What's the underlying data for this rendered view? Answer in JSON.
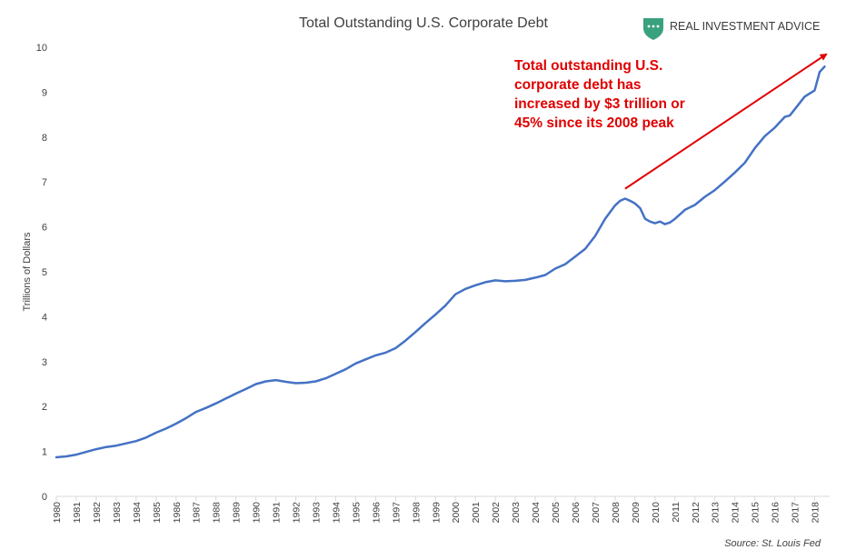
{
  "brand": {
    "name": "REAL INVESTMENT ADVICE",
    "logo_icon": "shield-logo-icon",
    "logo_color": "#3aa17e"
  },
  "source": "Source: St. Louis Fed",
  "colors": {
    "line": "#4472c4",
    "annotation": "#e00000",
    "axis": "#d9d9d9",
    "text": "#404040"
  },
  "chart_data": {
    "type": "line",
    "title": "Total Outstanding U.S. Corporate Debt",
    "xlabel": "",
    "ylabel": "Trillions of Dollars",
    "ylim": [
      0,
      10
    ],
    "xlim": [
      1980,
      2018.75
    ],
    "yticks": [
      0,
      1,
      2,
      3,
      4,
      5,
      6,
      7,
      8,
      9,
      10
    ],
    "xticks": [
      "1980",
      "1981",
      "1982",
      "1983",
      "1984",
      "1985",
      "1986",
      "1987",
      "1988",
      "1989",
      "1990",
      "1991",
      "1992",
      "1993",
      "1994",
      "1995",
      "1996",
      "1997",
      "1998",
      "1999",
      "2000",
      "2001",
      "2002",
      "2003",
      "2004",
      "2005",
      "2006",
      "2007",
      "2008",
      "2009",
      "2010",
      "2011",
      "2012",
      "2013",
      "2014",
      "2015",
      "2016",
      "2017",
      "2018"
    ],
    "grid": false,
    "legend": "none",
    "annotation": {
      "text_lines": [
        "Total outstanding U.S.",
        "corporate debt has",
        "increased by $3 trillion or",
        "45% since its 2008 peak"
      ],
      "arrow_from": [
        2008.5,
        6.85
      ],
      "arrow_to": [
        2018.6,
        9.85
      ]
    },
    "series": [
      {
        "x": [
          1980,
          1980.5,
          1981,
          1981.5,
          1982,
          1982.5,
          1983,
          1983.5,
          1984,
          1984.5,
          1985,
          1985.5,
          1986,
          1986.5,
          1987,
          1987.5,
          1988,
          1988.5,
          1989,
          1989.5,
          1990,
          1990.5,
          1991,
          1991.5,
          1992,
          1992.5,
          1993,
          1993.5,
          1994,
          1994.5,
          1995,
          1995.5,
          1996,
          1996.5,
          1997,
          1997.5,
          1998,
          1998.5,
          1999,
          1999.5,
          2000,
          2000.5,
          2001,
          2001.5,
          2002,
          2002.5,
          2003,
          2003.5,
          2004,
          2004.5,
          2005,
          2005.5,
          2006,
          2006.5,
          2007,
          2007.5,
          2008,
          2008.25,
          2008.5,
          2008.75,
          2009,
          2009.25,
          2009.5,
          2009.75,
          2010,
          2010.25,
          2010.5,
          2010.75,
          2011,
          2011.5,
          2012,
          2012.5,
          2013,
          2013.5,
          2014,
          2014.5,
          2015,
          2015.5,
          2016,
          2016.25,
          2016.5,
          2016.75,
          2017,
          2017.5,
          2018,
          2018.25,
          2018.5
        ],
        "values": [
          0.87,
          0.89,
          0.93,
          0.99,
          1.05,
          1.1,
          1.13,
          1.18,
          1.23,
          1.31,
          1.42,
          1.51,
          1.62,
          1.74,
          1.88,
          1.97,
          2.07,
          2.18,
          2.29,
          2.39,
          2.5,
          2.56,
          2.59,
          2.55,
          2.52,
          2.53,
          2.56,
          2.63,
          2.73,
          2.83,
          2.96,
          3.05,
          3.14,
          3.2,
          3.3,
          3.47,
          3.66,
          3.86,
          4.05,
          4.25,
          4.5,
          4.62,
          4.7,
          4.77,
          4.81,
          4.79,
          4.8,
          4.82,
          4.87,
          4.93,
          5.07,
          5.17,
          5.34,
          5.51,
          5.8,
          6.18,
          6.48,
          6.58,
          6.63,
          6.58,
          6.52,
          6.42,
          6.18,
          6.12,
          6.08,
          6.12,
          6.06,
          6.1,
          6.18,
          6.38,
          6.49,
          6.67,
          6.82,
          7.01,
          7.21,
          7.43,
          7.75,
          8.02,
          8.21,
          8.33,
          8.45,
          8.48,
          8.62,
          8.9,
          9.04,
          9.45,
          9.57
        ]
      }
    ]
  }
}
